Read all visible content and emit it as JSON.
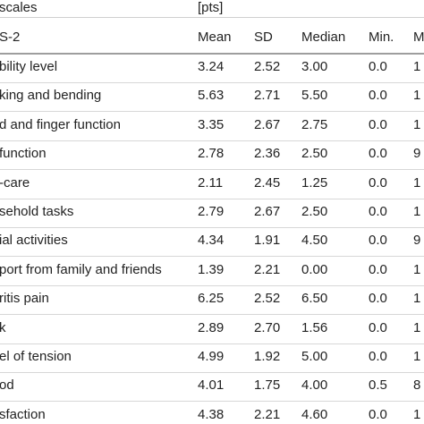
{
  "header": {
    "title": "scales",
    "unit": "[pts]",
    "subtitle": "S-2",
    "columns": [
      "Mean",
      "SD",
      "Median",
      "Min.",
      "M"
    ]
  },
  "rows": [
    {
      "label": "bility level",
      "mean": "3.24",
      "sd": "2.52",
      "median": "3.00",
      "min": "0.0",
      "max": "1"
    },
    {
      "label": "king and bending",
      "mean": "5.63",
      "sd": "2.71",
      "median": "5.50",
      "min": "0.0",
      "max": "1"
    },
    {
      "label": "d and finger function",
      "mean": "3.35",
      "sd": "2.67",
      "median": "2.75",
      "min": "0.0",
      "max": "1"
    },
    {
      "label": "function",
      "mean": "2.78",
      "sd": "2.36",
      "median": "2.50",
      "min": "0.0",
      "max": "9"
    },
    {
      "label": "-care",
      "mean": "2.11",
      "sd": "2.45",
      "median": "1.25",
      "min": "0.0",
      "max": "1"
    },
    {
      "label": "sehold tasks",
      "mean": "2.79",
      "sd": "2.67",
      "median": "2.50",
      "min": "0.0",
      "max": "1"
    },
    {
      "label": "ial activities",
      "mean": "4.34",
      "sd": "1.91",
      "median": "4.50",
      "min": "0.0",
      "max": "9"
    },
    {
      "label": "port from family and friends",
      "mean": "1.39",
      "sd": "2.21",
      "median": "0.00",
      "min": "0.0",
      "max": "1"
    },
    {
      "label": "ritis pain",
      "mean": "6.25",
      "sd": "2.52",
      "median": "6.50",
      "min": "0.0",
      "max": "1"
    },
    {
      "label": "k",
      "mean": "2.89",
      "sd": "2.70",
      "median": "1.56",
      "min": "0.0",
      "max": "1"
    },
    {
      "label": "el of tension",
      "mean": "4.99",
      "sd": "1.92",
      "median": "5.00",
      "min": "0.0",
      "max": "1"
    },
    {
      "label": "od",
      "mean": "4.01",
      "sd": "1.75",
      "median": "4.00",
      "min": "0.5",
      "max": "8"
    },
    {
      "label": "sfaction",
      "mean": "4.38",
      "sd": "2.21",
      "median": "4.60",
      "min": "0.0",
      "max": "1"
    }
  ]
}
